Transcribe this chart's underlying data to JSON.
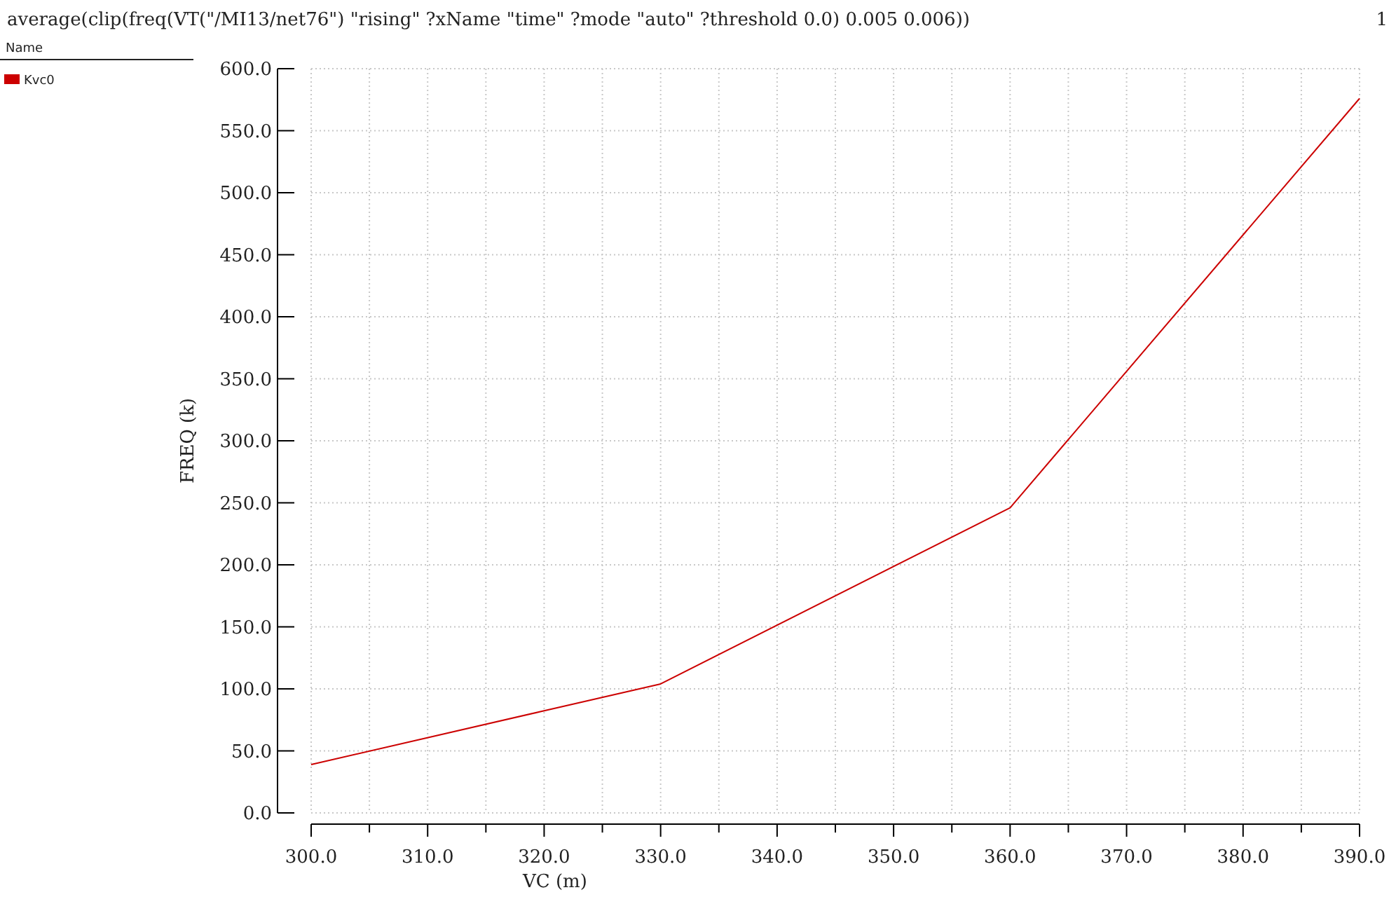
{
  "chart_data": {
    "type": "line",
    "title": "average(clip(freq(VT(\"/MI13/net76\") \"rising\" ?xName \"time\" ?mode \"auto\" ?threshold 0.0) 0.005 0.006))",
    "annotations": [
      "1"
    ],
    "xlabel": "VC (m)",
    "ylabel": "FREQ (k)",
    "legend_title": "Name",
    "legend": "top left",
    "grid": true,
    "x": [
      300,
      330,
      360,
      390
    ],
    "series": [
      {
        "name": "Kvc0",
        "color": "#cc0000",
        "values": [
          39,
          104,
          246,
          576
        ]
      }
    ],
    "xlim": [
      300,
      390
    ],
    "xticks": [
      {
        "value": 300,
        "label": "300.0"
      },
      {
        "value": 305,
        "label": null
      },
      {
        "value": 310,
        "label": "310.0"
      },
      {
        "value": 315,
        "label": null
      },
      {
        "value": 320,
        "label": "320.0"
      },
      {
        "value": 325,
        "label": null
      },
      {
        "value": 330,
        "label": "330.0"
      },
      {
        "value": 335,
        "label": null
      },
      {
        "value": 340,
        "label": "340.0"
      },
      {
        "value": 345,
        "label": null
      },
      {
        "value": 350,
        "label": "350.0"
      },
      {
        "value": 355,
        "label": null
      },
      {
        "value": 360,
        "label": "360.0"
      },
      {
        "value": 365,
        "label": null
      },
      {
        "value": 370,
        "label": "370.0"
      },
      {
        "value": 375,
        "label": null
      },
      {
        "value": 380,
        "label": "380.0"
      },
      {
        "value": 385,
        "label": null
      },
      {
        "value": 390,
        "label": "390.0"
      }
    ],
    "ylim": [
      0,
      600
    ],
    "yticks": [
      {
        "value": 0,
        "label": "0.0"
      },
      {
        "value": 50,
        "label": "50.0"
      },
      {
        "value": 100,
        "label": "100.0"
      },
      {
        "value": 150,
        "label": "150.0"
      },
      {
        "value": 200,
        "label": "200.0"
      },
      {
        "value": 250,
        "label": "250.0"
      },
      {
        "value": 300,
        "label": "300.0"
      },
      {
        "value": 350,
        "label": "350.0"
      },
      {
        "value": 400,
        "label": "400.0"
      },
      {
        "value": 450,
        "label": "450.0"
      },
      {
        "value": 500,
        "label": "500.0"
      },
      {
        "value": 550,
        "label": "550.0"
      },
      {
        "value": 600,
        "label": "600.0"
      }
    ]
  }
}
